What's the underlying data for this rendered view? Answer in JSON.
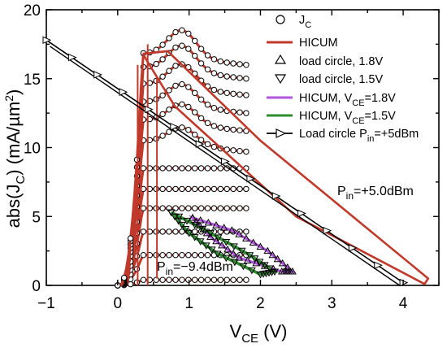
{
  "chart_data": {
    "type": "line",
    "xlabel": "V_CE (V)",
    "ylabel": "abs(J_C) (mA/µm²)",
    "xlim": [
      -1,
      4.5
    ],
    "ylim": [
      0,
      20
    ],
    "xticks": [
      "−1",
      "0",
      "1",
      "2",
      "3",
      "4"
    ],
    "yticks": [
      "0",
      "5",
      "10",
      "15",
      "20"
    ],
    "grid": false,
    "legend_position": "top-right",
    "legend": [
      {
        "label": "J_C",
        "marker": "circle",
        "color": "#000000"
      },
      {
        "label": "HICUM",
        "line": true,
        "color": "#c0392b"
      },
      {
        "label": "load circle, 1.8V",
        "marker": "triangle-up",
        "color": "#000000"
      },
      {
        "label": "load circle, 1.5V",
        "marker": "triangle-down",
        "color": "#000000"
      },
      {
        "label": "HICUM, V_CE=1.8V",
        "line": true,
        "color": "#b455e0"
      },
      {
        "label": "HICUM, V_CE=1.5V",
        "line": true,
        "color": "#2e8b2e"
      },
      {
        "label": "Load circle P_in=+5dBm",
        "marker": "triangle-right",
        "line": true,
        "color": "#000000"
      }
    ],
    "annotations": [
      "P_in=+5.0dBm",
      "P_in=−9.4dBm"
    ],
    "output_curves_plateau": [
      0.4,
      2.2,
      3.9,
      5.6,
      7.0,
      8.5,
      10.5,
      12.0,
      13.3,
      14.6,
      15.8,
      16.8
    ],
    "output_curve_Vmax": 1.8,
    "output_curve_Vknee": 0.35,
    "load_line_5dBm": {
      "x": [
        -1,
        4.0
      ],
      "y": [
        17.8,
        0.2
      ]
    },
    "loop_1p8V": {
      "x": [
        1.05,
        1.6,
        2.1,
        2.45,
        2.3,
        1.7,
        1.3,
        1.05
      ],
      "y": [
        4.9,
        4.0,
        2.5,
        1.0,
        1.0,
        2.0,
        3.5,
        4.9
      ]
    },
    "loop_1p5V": {
      "x": [
        0.75,
        1.3,
        1.85,
        2.2,
        2.0,
        1.4,
        1.0,
        0.75
      ],
      "y": [
        5.3,
        3.8,
        2.2,
        1.0,
        0.8,
        2.3,
        3.8,
        5.3
      ]
    },
    "hicum_5dBm_loop": {
      "x": [
        0.35,
        0.7,
        2.0,
        4.35,
        4.3,
        2.5,
        0.8,
        0.35
      ],
      "y": [
        16.8,
        17.0,
        10.5,
        0.5,
        0.1,
        5.0,
        13.0,
        16.8
      ]
    }
  }
}
